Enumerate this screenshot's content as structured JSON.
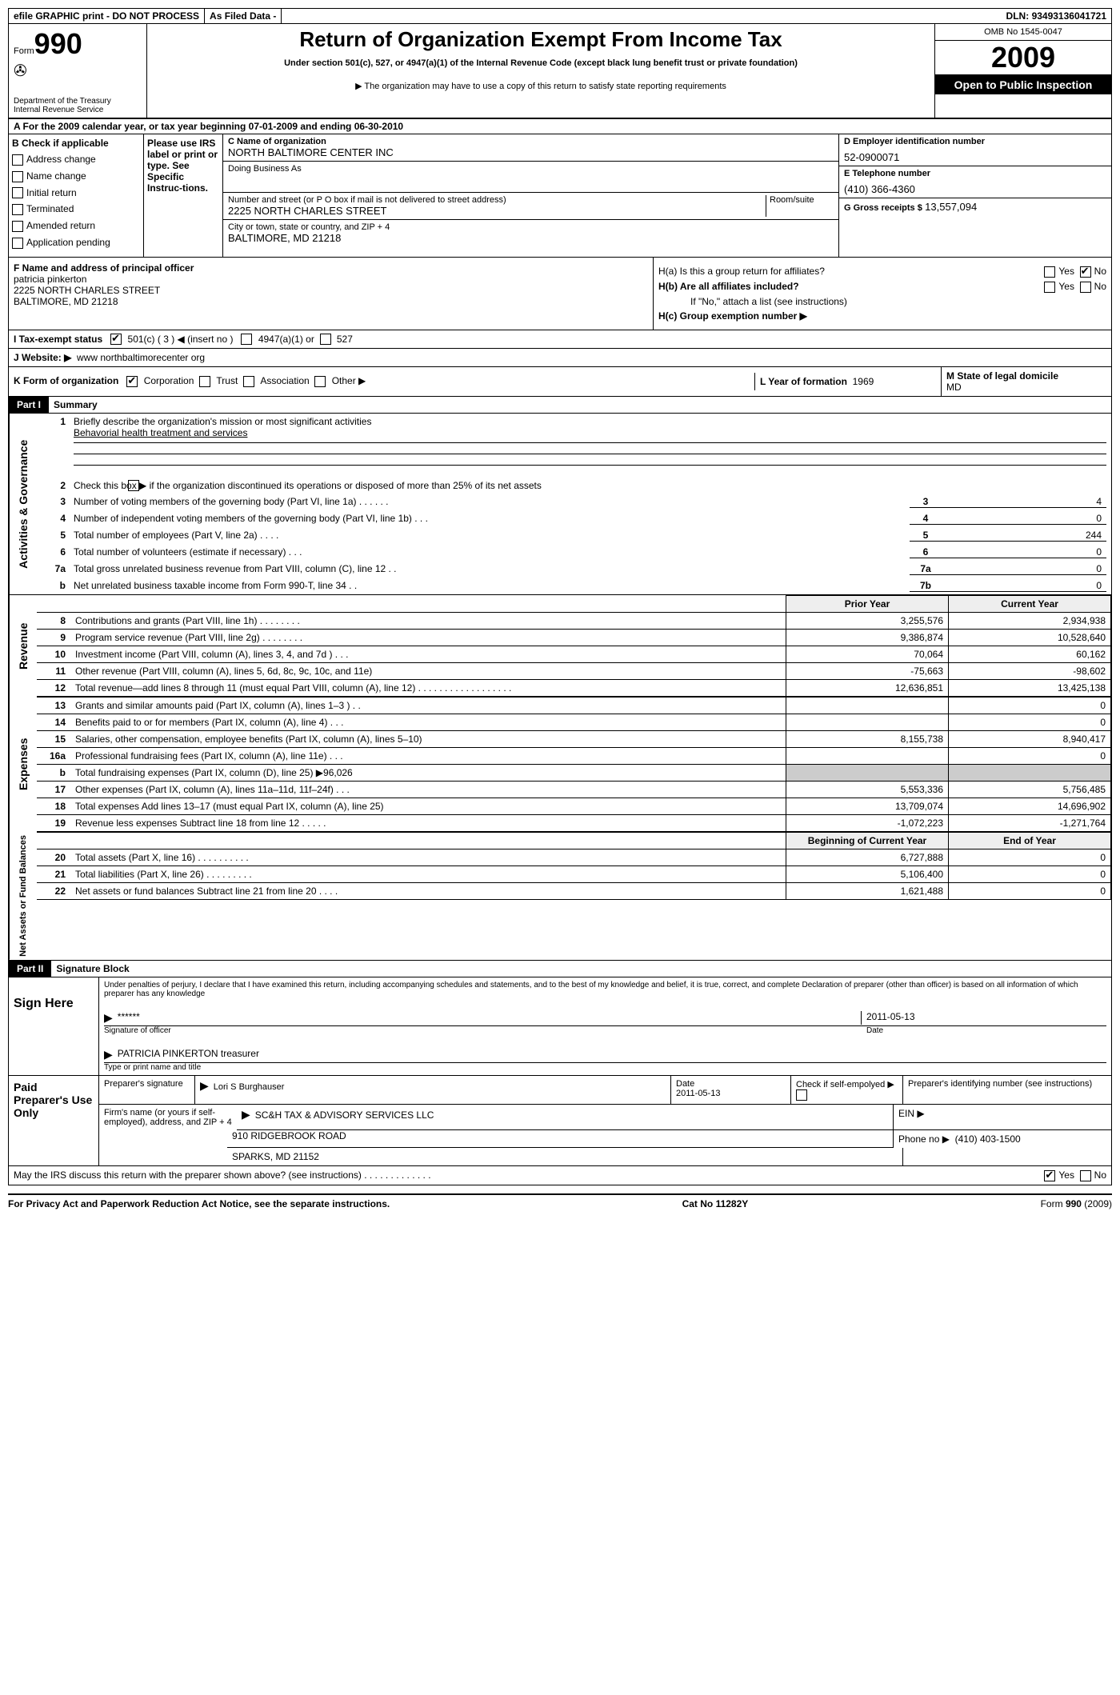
{
  "topbar": {
    "left": "efile GRAPHIC print - DO NOT PROCESS",
    "mid": "As Filed Data -",
    "dln_label": "DLN:",
    "dln": "93493136041721"
  },
  "header": {
    "form_label": "Form",
    "form_num": "990",
    "dept1": "Department of the Treasury",
    "dept2": "Internal Revenue Service",
    "title": "Return of Organization Exempt From Income Tax",
    "subtitle": "Under section 501(c), 527, or 4947(a)(1) of the Internal Revenue Code (except black lung benefit trust or private foundation)",
    "note": "The organization may have to use a copy of this return to satisfy state reporting requirements",
    "omb": "OMB No 1545-0047",
    "year": "2009",
    "inspect": "Open to Public Inspection"
  },
  "section_a": "A  For the 2009 calendar year, or tax year beginning 07-01-2009    and ending 06-30-2010",
  "col_b": {
    "header": "B Check if applicable",
    "items": [
      "Address change",
      "Name change",
      "Initial return",
      "Terminated",
      "Amended return",
      "Application pending"
    ]
  },
  "irs_note": "Please use IRS label or print or type. See Specific Instruc-tions.",
  "c": {
    "label_name": "C Name of organization",
    "name": "NORTH BALTIMORE CENTER INC",
    "dba_label": "Doing Business As",
    "dba": "",
    "addr_label": "Number and street (or P O  box if mail is not delivered to street address)",
    "room_label": "Room/suite",
    "addr": "2225 NORTH CHARLES STREET",
    "city_label": "City or town, state or country, and ZIP + 4",
    "city": "BALTIMORE, MD  21218"
  },
  "d": {
    "label": "D Employer identification number",
    "val": "52-0900071"
  },
  "e": {
    "label": "E Telephone number",
    "val": "(410) 366-4360"
  },
  "g": {
    "label": "G Gross receipts $",
    "val": "13,557,094"
  },
  "f": {
    "label": "F   Name and address of principal officer",
    "name": "patricia pinkerton",
    "addr1": "2225 NORTH CHARLES STREET",
    "addr2": "BALTIMORE, MD  21218"
  },
  "h": {
    "a": "H(a)  Is this a group return for affiliates?",
    "b": "H(b)  Are all affiliates included?",
    "b_note": "If \"No,\" attach a list  (see instructions)",
    "c": "H(c)   Group exemption number ▶",
    "yes": "Yes",
    "no": "No"
  },
  "i": {
    "label": "I   Tax-exempt status",
    "opt1": "501(c) ( 3 ) ◀ (insert no )",
    "opt2": "4947(a)(1) or",
    "opt3": "527"
  },
  "j": {
    "label": "J   Website: ▶",
    "val": "www northbaltimorecenter org"
  },
  "k": {
    "label": "K Form of organization",
    "opts": [
      "Corporation",
      "Trust",
      "Association",
      "Other ▶"
    ]
  },
  "l": {
    "label": "L Year of formation",
    "val": "1969"
  },
  "m": {
    "label": "M State of legal domicile",
    "val": "MD"
  },
  "part1": {
    "hdr": "Part I",
    "title": "Summary",
    "l1_label": "Briefly describe the organization's mission or most significant activities",
    "l1_val": "Behavorial health treatment and services",
    "l2": "Check this box ▶      if the organization discontinued its operations or disposed of more than 25% of its net assets",
    "rows_simple": [
      {
        "n": "3",
        "t": "Number of voting members of the governing body (Part VI, line 1a)   .    .    .    .     .    .",
        "k": "3",
        "v": "4"
      },
      {
        "n": "4",
        "t": "Number of independent voting members of the governing body (Part VI, line 1b)    .    .    .",
        "k": "4",
        "v": "0"
      },
      {
        "n": "5",
        "t": "Total number of employees (Part V, line 2a)    .    .    .    .",
        "k": "5",
        "v": "244"
      },
      {
        "n": "6",
        "t": "Total number of volunteers (estimate if necessary)   .    .    .",
        "k": "6",
        "v": "0"
      },
      {
        "n": "7a",
        "t": "Total gross unrelated business revenue from Part VIII, column (C), line 12   .   .",
        "k": "7a",
        "v": "0"
      },
      {
        "n": "b",
        "t": "Net unrelated business taxable income from Form 990-T, line 34   .   .",
        "k": "7b",
        "v": "0"
      }
    ]
  },
  "fin": {
    "col_prior": "Prior Year",
    "col_current": "Current Year",
    "col_begin": "Beginning of Current Year",
    "col_end": "End of Year",
    "revenue": [
      {
        "n": "8",
        "t": "Contributions and grants (Part VIII, line 1h)   .    .    .    .    .    .    .    .",
        "p": "3,255,576",
        "c": "2,934,938"
      },
      {
        "n": "9",
        "t": "Program service revenue (Part VIII, line 2g)   .    .    .    .    .    .    .    .",
        "p": "9,386,874",
        "c": "10,528,640"
      },
      {
        "n": "10",
        "t": "Investment income (Part VIII, column (A), lines 3, 4, and 7d )    .    .    .",
        "p": "70,064",
        "c": "60,162"
      },
      {
        "n": "11",
        "t": "Other revenue (Part VIII, column (A), lines 5, 6d, 8c, 9c, 10c, and 11e)",
        "p": "-75,663",
        "c": "-98,602"
      },
      {
        "n": "12",
        "t": "Total revenue—add lines 8 through 11 (must equal Part VIII, column (A), line 12) .   .   .   .   .   .   .   .   .   .   .   .   .   .   .   .   .   .",
        "p": "12,636,851",
        "c": "13,425,138"
      }
    ],
    "expenses": [
      {
        "n": "13",
        "t": "Grants and similar amounts paid (Part IX, column (A), lines 1–3 )   .   .",
        "p": "",
        "c": "0"
      },
      {
        "n": "14",
        "t": "Benefits paid to or for members (Part IX, column (A), line 4)   .    .    .",
        "p": "",
        "c": "0"
      },
      {
        "n": "15",
        "t": "Salaries, other compensation, employee benefits (Part IX, column (A), lines 5–10)",
        "p": "8,155,738",
        "c": "8,940,417"
      },
      {
        "n": "16a",
        "t": "Professional fundraising fees (Part IX, column (A), line 11e)   .    .    .",
        "p": "",
        "c": "0"
      },
      {
        "n": "b",
        "t": "Total fundraising expenses (Part IX, column (D), line 25) ▶96,026",
        "p": "shade",
        "c": "shade"
      },
      {
        "n": "17",
        "t": "Other expenses (Part IX, column (A), lines 11a–11d, 11f–24f)    .    .    .",
        "p": "5,553,336",
        "c": "5,756,485"
      },
      {
        "n": "18",
        "t": "Total expenses  Add lines 13–17 (must equal Part IX, column (A), line 25)",
        "p": "13,709,074",
        "c": "14,696,902"
      },
      {
        "n": "19",
        "t": "Revenue less expenses  Subtract line 18 from line 12   .    .    .    .    .",
        "p": "-1,072,223",
        "c": "-1,271,764"
      }
    ],
    "net": [
      {
        "n": "20",
        "t": "Total assets (Part X, line 16)   .    .    .    .    .    .    .    .    .    .",
        "p": "6,727,888",
        "c": "0"
      },
      {
        "n": "21",
        "t": "Total liabilities (Part X, line 26)   .    .    .    .    .    .    .    .    .",
        "p": "5,106,400",
        "c": "0"
      },
      {
        "n": "22",
        "t": "Net assets or fund balances  Subtract line 21 from line 20   .    .    .    .",
        "p": "1,621,488",
        "c": "0"
      }
    ]
  },
  "vlabels": {
    "gov": "Activities & Governance",
    "rev": "Revenue",
    "exp": "Expenses",
    "net": "Net Assets or Fund Balances"
  },
  "part2": {
    "hdr": "Part II",
    "title": "Signature Block",
    "perjury": "Under penalties of perjury, I declare that I have examined this return, including accompanying schedules and statements, and to the best of my knowledge and belief, it is true, correct, and complete  Declaration of preparer (other than officer) is based on all information of which preparer has any knowledge",
    "sign_here": "Sign Here",
    "sig_mask": "******",
    "sig_label": "Signature of officer",
    "date_label": "Date",
    "date": "2011-05-13",
    "officer": "PATRICIA PINKERTON treasurer",
    "officer_label": "Type or print name and title",
    "paid": "Paid Preparer's Use Only",
    "prep_sig_label": "Preparer's signature",
    "prep_name": "Lori S Burghauser",
    "prep_date_label": "Date",
    "prep_date": "2011-05-13",
    "self_label": "Check if self-empolyed ▶",
    "ptin_label": "Preparer's identifying number (see instructions)",
    "firm_label": "Firm's name (or yours if self-employed), address, and ZIP + 4",
    "firm_name": "SC&H TAX & ADVISORY SERVICES LLC",
    "firm_addr1": "910 RIDGEBROOK ROAD",
    "firm_addr2": "SPARKS, MD  21152",
    "ein_label": "EIN ▶",
    "phone_label": "Phone no  ▶",
    "phone": "(410) 403-1500",
    "discuss": "May the IRS discuss this return with the preparer shown above? (see instructions)   .    .    .    .    .    .    .    .    .    .    .    .    ."
  },
  "footer": {
    "left": "For Privacy Act and Paperwork Reduction Act Notice, see the separate instructions.",
    "mid": "Cat No 11282Y",
    "right": "Form 990 (2009)"
  }
}
